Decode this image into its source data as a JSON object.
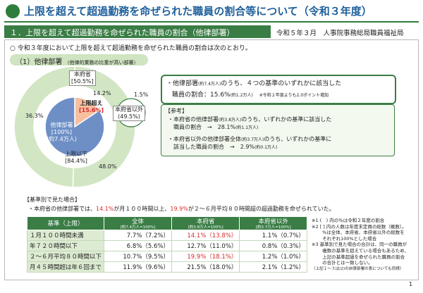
{
  "title": "上限を超えて超過勤務を命ぜられた職員の割合等について（令和３年度）",
  "section": "１．上限を超えて超過勤務を命ぜられた職員の割合（他律部署）",
  "date_issuer": "令和５年３月　人事院事務総局職員福祉局",
  "intro": "令和３年度において上限を超えて超過勤務を命ぜられた職員の割合は次のとおり。",
  "subsection": {
    "label": "（1）他律部署",
    "note": "（他律的業務の比重が高い部署）"
  },
  "chart_data": {
    "type": "pie",
    "center": {
      "line1": "他律部署",
      "line2": "[100%]",
      "line3": "(約7.4万人)"
    },
    "outer_ring": [
      {
        "name": "本府省",
        "value": 50.5,
        "pct_label": "[50.5%]",
        "color": "#d3e6c4"
      },
      {
        "name": "本府省以外",
        "value": 49.5,
        "pct_label": "(49.5%)",
        "color": "#d3e6c4"
      }
    ],
    "inner_ring": [
      {
        "label": "14.2%",
        "value": 14.2,
        "color": "#ffffff"
      },
      {
        "label": "1.5%",
        "value": 1.5,
        "color": "#ffffff"
      },
      {
        "label": "48.0%",
        "value": 48.0,
        "color": "#b7d49f"
      },
      {
        "label": "36.3%",
        "value": 36.3,
        "color": "#b7d49f"
      }
    ],
    "highlight": {
      "name": "上限超え",
      "pct_label": "[15.6%]",
      "value": 15.6,
      "color": "#f6bfa0"
    },
    "below": {
      "name": "上限以下",
      "pct_label": "[84.4%]",
      "value": 84.4,
      "color": "#6d8fc6"
    }
  },
  "main_box": {
    "line1": "・他律部署",
    "line1_small": "(約7.4万人)",
    "line1_rest": "のうち、４つの基準のいずれかに該当した",
    "line2": "職員の割合：15.6%",
    "line2_small": "(約1.2万人)",
    "line2_note": "※令和２年度よりも2.0ポイント増加"
  },
  "ref_box": {
    "heading": "【参考】",
    "a_line1": "・本府省の他律部署",
    "a_small": "(約3.8万人)",
    "a_rest": "のうち、いずれかの基準に該当した",
    "a_line2": "職員の割合　→　28.1%",
    "a_small2": "(約1.1万人)",
    "b_line1": "・本府省以外の他律部署全体",
    "b_small": "(約3.7万人)",
    "b_rest": "のうち、いずれかの基準に",
    "b_line2": "該当した職員の割合　→　2.9%",
    "b_small2": "(約0.1万人)"
  },
  "criteria_heading": "【基準別で見た場合】",
  "criteria_sentence": {
    "p1": "・本府省の他律部署では、",
    "r1": "14.1%",
    "p2": "が月１００時間以上、",
    "r2": "19.9%",
    "p3": "が２～６月平均８０時間超の超過勤務を命ぜられていた。"
  },
  "table": {
    "headers": [
      {
        "main": "基準（上限）",
        "sub": ""
      },
      {
        "main": "全体",
        "sub": "[約7.4万人=100%]"
      },
      {
        "main": "本府省",
        "sub": "[約3.8万人=100%]"
      },
      {
        "main": "本府省以外",
        "sub": "[約3.7万人=100%]"
      }
    ],
    "rows": [
      {
        "label": "１月１００時間未満",
        "c1": "7.7%（7.2%）",
        "c2": "14.1%（13.8%）",
        "c3": "1.1%（0.7%）"
      },
      {
        "label": "年７２０時間以下",
        "c1": "6.8%（5.6%）",
        "c2": "12.7%（11.0%）",
        "c3": "0.8%（0.3%）"
      },
      {
        "label": "２～６月平均８０時間以下",
        "c1": "10.7%（9.5%）",
        "c2": "19.9%（18.1%）",
        "c3": "1.2%（1.0%）"
      },
      {
        "label": "月４５時間超は年６回まで",
        "c1": "11.9%（9.6%）",
        "c2": "21.5%（18.0%）",
        "c3": "2.1%（1.2%）"
      }
    ]
  },
  "notes": [
    "※1 (　) 内の％は令和２年度の割合",
    "※2 [ ] 内の人数は年度末定員の総数（概数）。",
    "　　 %は全体、本府省、本府省以外の総数を",
    "　　 それぞれ100%とした場合",
    "※3 基準別で見た場合の合計は、同一の職員が",
    "　　 複数の基準を超えている場合もあるため、",
    "　　 上記の基準超過を命ぜられた職員の割合",
    "　　 の合計とは一致しない。",
    "（上記１～３は(2)の自律部署の表についても同様）"
  ],
  "page": "1"
}
